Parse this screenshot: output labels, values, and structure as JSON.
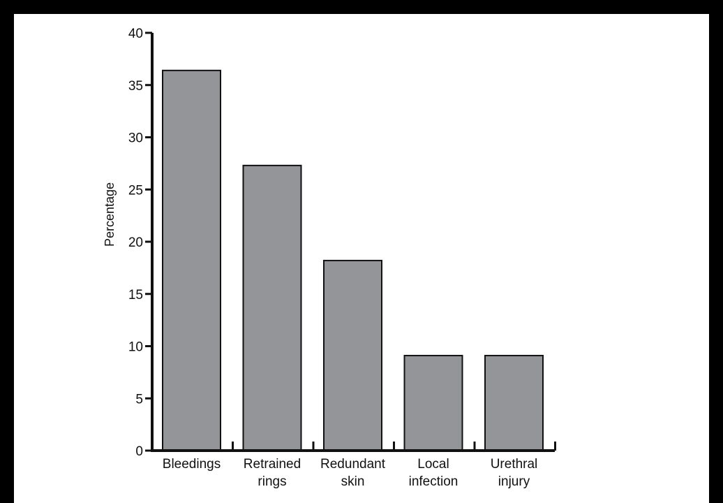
{
  "chart_data": {
    "type": "bar",
    "title": "",
    "xlabel": "",
    "ylabel": "Percentage",
    "categories": [
      "Bleedings",
      "Retrained rings",
      "Redundant skin",
      "Local infection",
      "Urethral injury"
    ],
    "category_lines": [
      [
        "Bleedings"
      ],
      [
        "Retrained",
        "rings"
      ],
      [
        "Redundant",
        "skin"
      ],
      [
        "Local",
        "infection"
      ],
      [
        "Urethral",
        "injury"
      ]
    ],
    "values": [
      36.4,
      27.3,
      18.2,
      9.1,
      9.1
    ],
    "ylim": [
      0,
      40
    ],
    "yticks": [
      0,
      5,
      10,
      15,
      20,
      25,
      30,
      35,
      40
    ],
    "grid": false,
    "bar_color": "#939598",
    "bar_edge_color": "#111111",
    "axis_color": "#111111"
  }
}
